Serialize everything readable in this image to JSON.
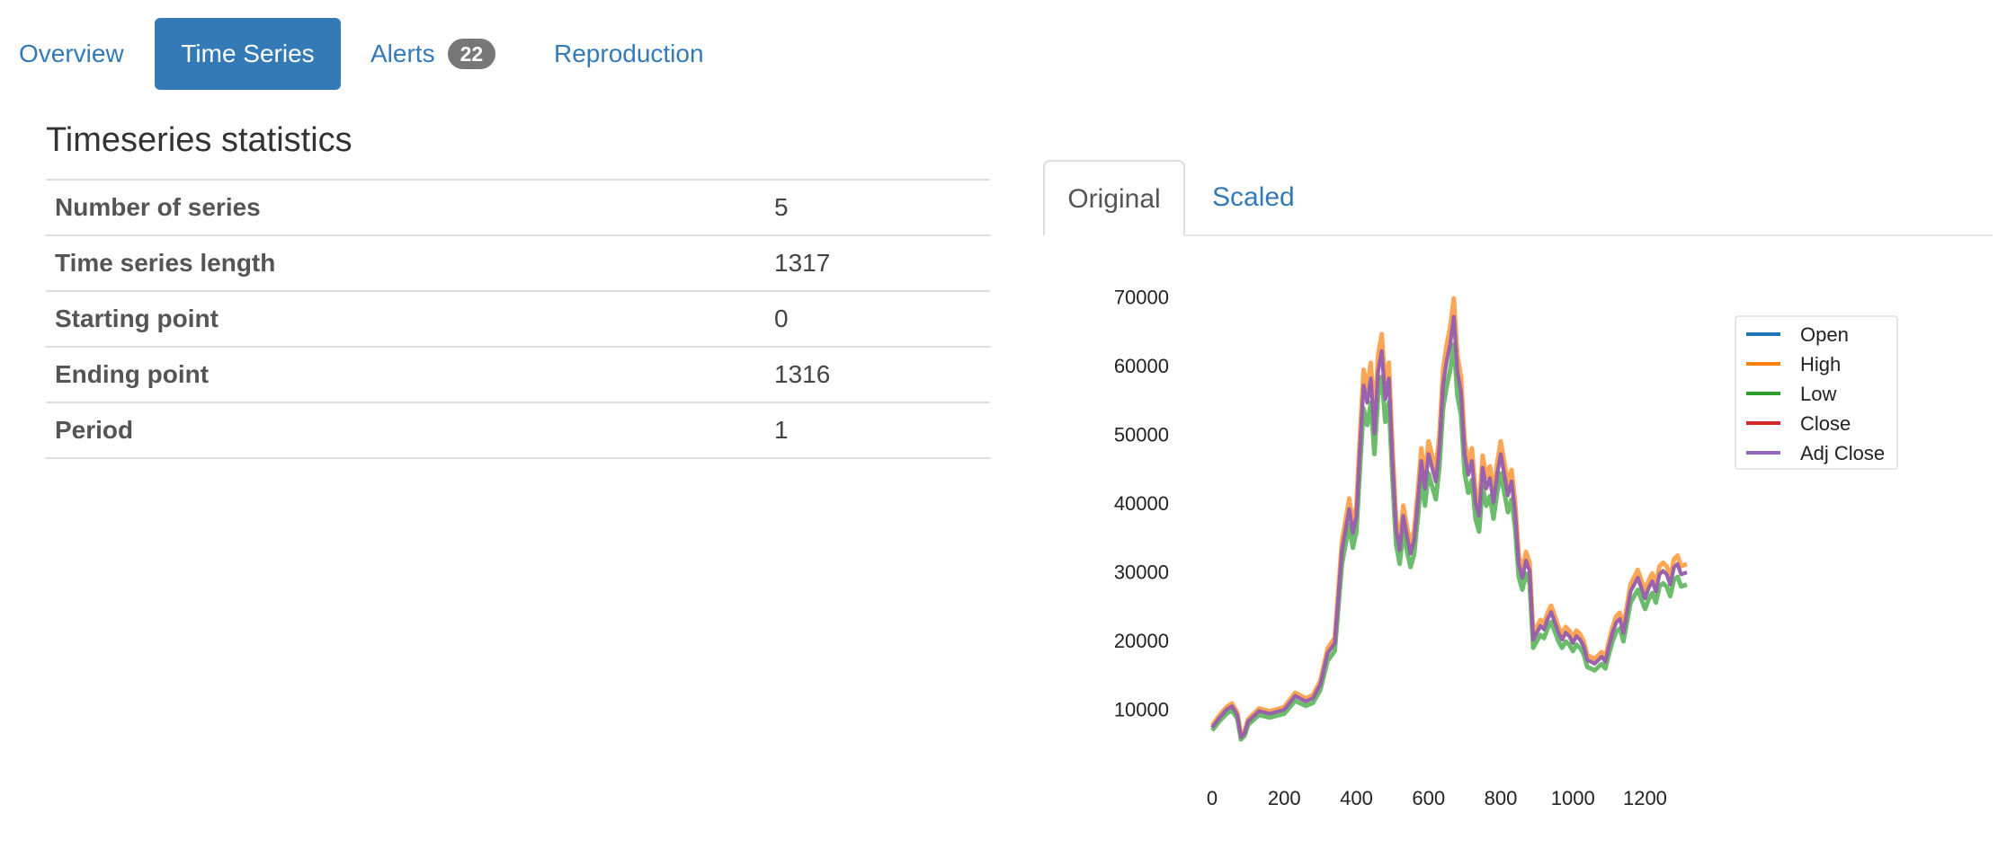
{
  "nav": {
    "items": [
      {
        "label": "Overview",
        "active": false
      },
      {
        "label": "Time Series",
        "active": true
      },
      {
        "label": "Alerts",
        "badge": "22",
        "active": false
      },
      {
        "label": "Reproduction",
        "active": false
      }
    ]
  },
  "stats": {
    "title": "Timeseries statistics",
    "rows": [
      {
        "label": "Number of series",
        "value": "5"
      },
      {
        "label": "Time series length",
        "value": "1317"
      },
      {
        "label": "Starting point",
        "value": "0"
      },
      {
        "label": "Ending point",
        "value": "1316"
      },
      {
        "label": "Period",
        "value": "1"
      }
    ]
  },
  "chart_tabs": [
    {
      "label": "Original",
      "active": true
    },
    {
      "label": "Scaled",
      "active": false
    }
  ],
  "colors": {
    "accent": "#337ab7",
    "badge": "#777777",
    "Open": "#1f77b4",
    "High": "#ff7f0e",
    "Low": "#2ca02c",
    "Close": "#d62728",
    "Adj Close": "#9467bd"
  },
  "chart_data": {
    "type": "line",
    "title": "",
    "xlabel": "",
    "ylabel": "",
    "xlim": [
      0,
      1316
    ],
    "ylim": [
      3000,
      71000
    ],
    "xticks": [
      0,
      200,
      400,
      600,
      800,
      1000,
      1200
    ],
    "yticks": [
      10000,
      20000,
      30000,
      40000,
      50000,
      60000,
      70000
    ],
    "grid": false,
    "legend_position": "top-right",
    "legend": [
      "Open",
      "High",
      "Low",
      "Close",
      "Adj Close"
    ],
    "close_series": {
      "x": [
        0,
        20,
        40,
        55,
        70,
        80,
        90,
        100,
        130,
        160,
        200,
        230,
        260,
        280,
        300,
        320,
        340,
        360,
        380,
        390,
        400,
        410,
        420,
        430,
        440,
        450,
        460,
        470,
        480,
        490,
        500,
        510,
        520,
        530,
        540,
        550,
        560,
        570,
        580,
        590,
        600,
        610,
        620,
        630,
        640,
        650,
        660,
        670,
        680,
        690,
        700,
        710,
        720,
        730,
        740,
        750,
        760,
        770,
        780,
        790,
        800,
        810,
        820,
        830,
        840,
        850,
        860,
        870,
        880,
        890,
        900,
        910,
        920,
        930,
        940,
        950,
        960,
        970,
        980,
        990,
        1000,
        1010,
        1020,
        1030,
        1040,
        1050,
        1060,
        1070,
        1080,
        1090,
        1100,
        1110,
        1120,
        1130,
        1140,
        1150,
        1160,
        1170,
        1180,
        1190,
        1200,
        1210,
        1220,
        1230,
        1240,
        1250,
        1260,
        1270,
        1280,
        1290,
        1300,
        1316
      ],
      "y": [
        7200,
        8600,
        9800,
        10300,
        9000,
        5800,
        6400,
        8100,
        9600,
        9200,
        9800,
        11800,
        11000,
        11500,
        13500,
        18000,
        19500,
        33000,
        39000,
        35500,
        38000,
        48000,
        57000,
        54500,
        58000,
        50000,
        59000,
        62000,
        55000,
        58000,
        46000,
        36000,
        33000,
        38000,
        35000,
        32500,
        34500,
        40000,
        46000,
        42000,
        47000,
        45000,
        43000,
        48000,
        57000,
        60500,
        63000,
        67000,
        59000,
        56000,
        47000,
        44000,
        46000,
        40000,
        38000,
        45000,
        42000,
        43500,
        40000,
        44000,
        47000,
        44000,
        41000,
        43000,
        38500,
        31000,
        29000,
        31500,
        30000,
        20000,
        21000,
        22000,
        21500,
        23000,
        24000,
        22500,
        21000,
        20000,
        21000,
        20500,
        19500,
        20500,
        20000,
        19000,
        17000,
        16800,
        16500,
        17000,
        17500,
        16800,
        19000,
        21000,
        22500,
        23000,
        21000,
        24000,
        27000,
        28000,
        29000,
        27500,
        26000,
        27500,
        28500,
        27000,
        29500,
        30000,
        29500,
        28000,
        30500,
        31000,
        29500,
        29800
      ]
    }
  }
}
